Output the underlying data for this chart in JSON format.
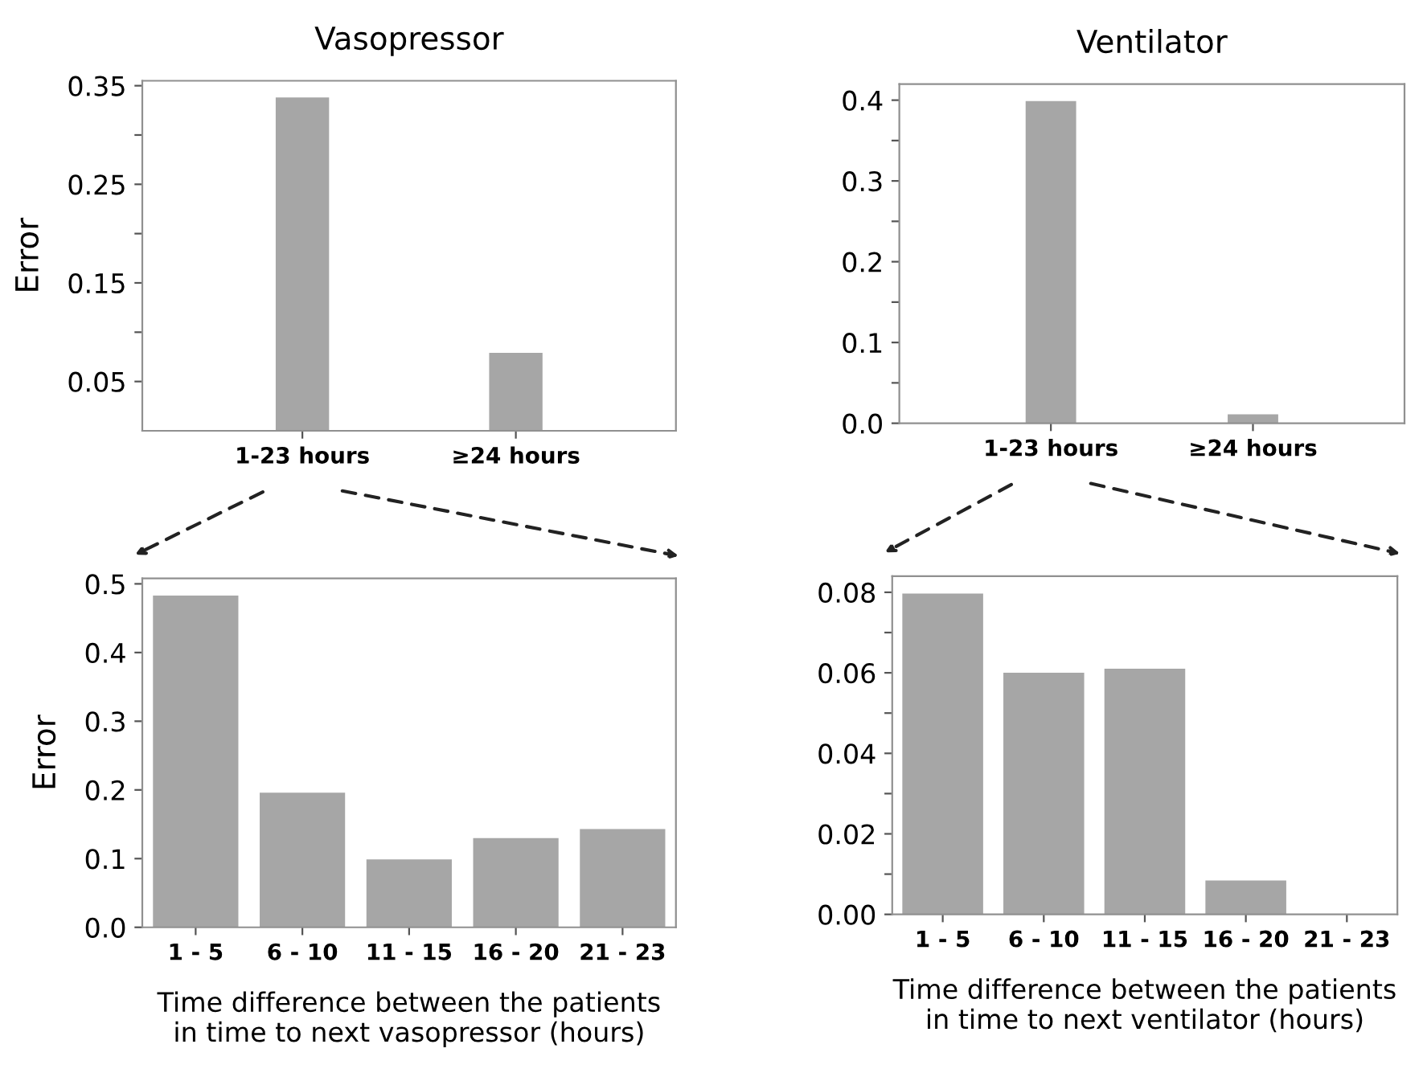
{
  "chart_data": [
    {
      "type": "bar",
      "title": "Vasopressor",
      "ylabel": "Error",
      "categories": [
        "1-23 hours",
        "≥24 hours"
      ],
      "values": [
        0.338,
        0.079
      ],
      "color": "#a6a6a6",
      "ylim": [
        0,
        0.355
      ],
      "yticks": [
        0.05,
        {
          "value": 0.1,
          "label": null
        },
        0.15,
        {
          "value": 0.2,
          "label": null
        },
        0.25,
        {
          "value": 0.3,
          "label": null
        },
        0.35
      ],
      "grid": false,
      "legend": false
    },
    {
      "type": "bar",
      "title": "Ventilator",
      "categories": [
        "1-23 hours",
        "≥24 hours"
      ],
      "values": [
        0.399,
        0.011
      ],
      "color": "#a6a6a6",
      "ylim": [
        0,
        0.42
      ],
      "yticks": [
        "0.0",
        {
          "value": 0.05,
          "label": null
        },
        0.1,
        {
          "value": 0.15,
          "label": null
        },
        0.2,
        {
          "value": 0.25,
          "label": null
        },
        0.3,
        {
          "value": 0.35,
          "label": null
        },
        0.4
      ],
      "grid": false,
      "legend": false
    },
    {
      "type": "bar",
      "ylabel": "Error",
      "xlabel": "Time difference between the patients\nin time to next vasopressor (hours)",
      "categories": [
        "1 - 5",
        "6 - 10",
        "11 - 15",
        "16 - 20",
        "21 - 23"
      ],
      "values": [
        0.483,
        0.196,
        0.099,
        0.13,
        0.143
      ],
      "color": "#a6a6a6",
      "ylim": [
        0,
        0.508
      ],
      "yticks": [
        {
          "value": 0,
          "label": "0.0"
        },
        0.1,
        0.2,
        0.3,
        0.4,
        0.5
      ],
      "grid": false,
      "legend": false
    },
    {
      "type": "bar",
      "xlabel": "Time difference between the patients\nin time to next ventilator (hours)",
      "categories": [
        "1 - 5",
        "6 - 10",
        "11 - 15",
        "16 - 20",
        "21 - 23"
      ],
      "values": [
        0.0797,
        0.06,
        0.061,
        0.0084,
        0
      ],
      "color": "#a6a6a6",
      "ylim": [
        0,
        0.084
      ],
      "yticks": [
        {
          "value": 0,
          "label": "0.00"
        },
        {
          "value": 0.01,
          "label": null
        },
        0.02,
        {
          "value": 0.03,
          "label": null
        },
        0.04,
        {
          "value": 0.05,
          "label": null
        },
        0.06,
        {
          "value": 0.07,
          "label": null
        },
        0.08
      ],
      "grid": false,
      "legend": false
    }
  ]
}
